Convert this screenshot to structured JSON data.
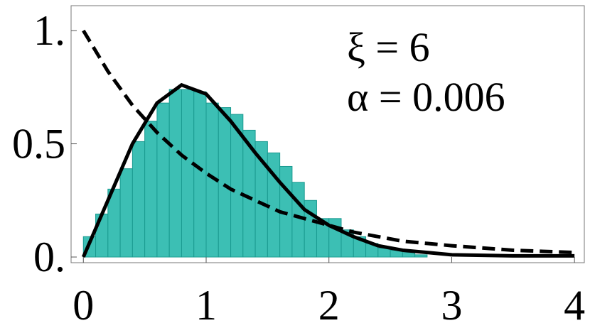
{
  "chart_data": {
    "type": "histogram",
    "bins": [
      0,
      0.1,
      0.2,
      0.3,
      0.4,
      0.5,
      0.6,
      0.7,
      0.8,
      0.9,
      1.0,
      1.1,
      1.2,
      1.3,
      1.4,
      1.5,
      1.6,
      1.7,
      1.8,
      1.9,
      2.0,
      2.1,
      2.2,
      2.3,
      2.4,
      2.5,
      2.6,
      2.7,
      2.8
    ],
    "values": [
      0.09,
      0.19,
      0.3,
      0.39,
      0.51,
      0.6,
      0.68,
      0.74,
      0.74,
      0.73,
      0.68,
      0.66,
      0.63,
      0.56,
      0.51,
      0.46,
      0.4,
      0.33,
      0.25,
      0.17,
      0.17,
      0.12,
      0.09,
      0.06,
      0.04,
      0.03,
      0.02,
      0.01
    ],
    "color": "#3cbfb4",
    "lines": [
      {
        "x": [
          0,
          0.2,
          0.4,
          0.6,
          0.8,
          1.0,
          1.2,
          1.4,
          1.6,
          1.8,
          2.0,
          2.2,
          2.4,
          2.6,
          2.8,
          3.0,
          3.5,
          4.0
        ],
        "values": [
          0,
          0.25,
          0.5,
          0.68,
          0.76,
          0.72,
          0.6,
          0.46,
          0.33,
          0.21,
          0.14,
          0.09,
          0.05,
          0.03,
          0.02,
          0.01,
          0.005,
          0.005
        ],
        "color": "#000000",
        "dash": false
      },
      {
        "x": [
          0,
          0.2,
          0.4,
          0.6,
          0.8,
          1.0,
          1.2,
          1.4,
          1.6,
          1.8,
          2.0,
          2.2,
          2.4,
          2.6,
          2.8,
          3.0,
          3.5,
          4.0
        ],
        "values": [
          1,
          0.82,
          0.67,
          0.55,
          0.45,
          0.37,
          0.3,
          0.25,
          0.2,
          0.17,
          0.14,
          0.11,
          0.09,
          0.07,
          0.06,
          0.05,
          0.03,
          0.02
        ],
        "color": "#000000",
        "dash": true
      }
    ],
    "annotations": [
      "ξ = 6",
      "α = 0.006"
    ],
    "xlim": [
      -0.1,
      4.08
    ],
    "ylim": [
      -0.025,
      1.11
    ],
    "xticks": [
      0,
      1,
      2,
      3,
      4
    ],
    "yticks": [
      {
        "value": 0,
        "label": "0."
      },
      0.5,
      {
        "value": 1,
        "label": "1."
      }
    ]
  }
}
